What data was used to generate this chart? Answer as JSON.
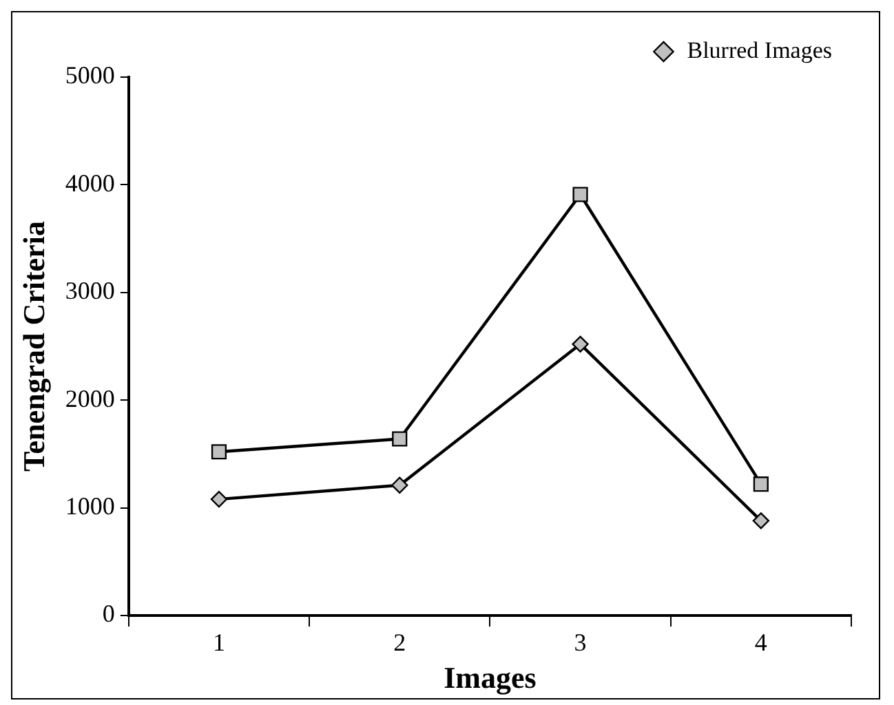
{
  "chart_data": {
    "type": "line",
    "xlabel": "Images",
    "ylabel": "Tenengrad Criteria",
    "categories": [
      "1",
      "2",
      "3",
      "4"
    ],
    "series": [
      {
        "color": "#000000",
        "marker": "square",
        "values": [
          1520,
          1640,
          3910,
          1220
        ]
      },
      {
        "name": "Blurred Images",
        "color": "#000000",
        "marker": "diamond",
        "values": [
          1080,
          1210,
          2520,
          880
        ]
      }
    ],
    "ylim": [
      0,
      5000
    ],
    "yticks": [
      0,
      1000,
      2000,
      3000,
      4000,
      5000
    ],
    "grid": false,
    "legend": "top right",
    "line_style": "solid"
  }
}
